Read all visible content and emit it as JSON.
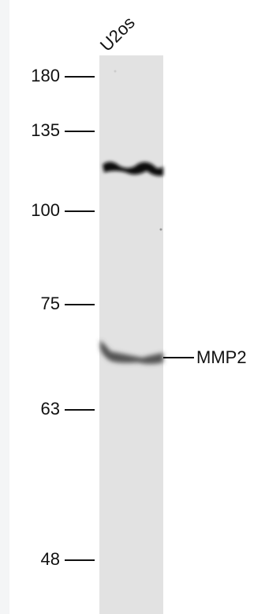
{
  "lane_label": "U2os",
  "markers": [
    "180",
    "135",
    "100",
    "75",
    "63",
    "48"
  ],
  "band_label": "MMP2"
}
